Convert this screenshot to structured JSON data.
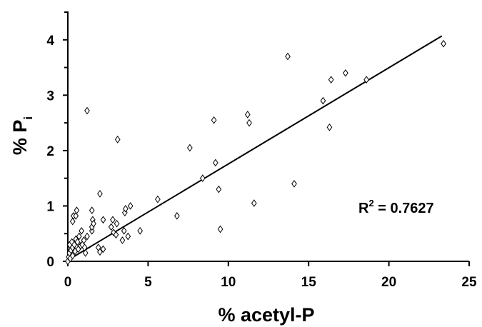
{
  "chart_data": {
    "type": "scatter",
    "title": "",
    "xlabel": "% acetyl-P",
    "ylabel_main": "% P",
    "ylabel_sub": "i",
    "xlim": [
      0,
      25
    ],
    "ylim": [
      0,
      4.5
    ],
    "x_ticks": [
      0,
      5,
      10,
      15,
      20,
      25
    ],
    "y_ticks": [
      0,
      1,
      2,
      3,
      4
    ],
    "y_minor_ticks": [
      0.5,
      1.5,
      2.5,
      3.5,
      4.5
    ],
    "grid": false,
    "legend": "none",
    "marker": "diamond-open",
    "annotation": {
      "prefix": "R",
      "superscript": "2",
      "suffix": " = 0.7627"
    },
    "trendline": {
      "x": [
        0,
        23.3
      ],
      "y": [
        0.02,
        4.07
      ]
    },
    "points": [
      {
        "x": 0.0,
        "y": 0.0
      },
      {
        "x": 0.05,
        "y": 0.08
      },
      {
        "x": 0.1,
        "y": 0.15
      },
      {
        "x": 0.12,
        "y": 0.3
      },
      {
        "x": 0.15,
        "y": 0.05
      },
      {
        "x": 0.2,
        "y": 0.2
      },
      {
        "x": 0.25,
        "y": 0.35
      },
      {
        "x": 0.3,
        "y": 0.1
      },
      {
        "x": 0.3,
        "y": 0.25
      },
      {
        "x": 0.35,
        "y": 0.82
      },
      {
        "x": 0.3,
        "y": 0.72
      },
      {
        "x": 0.5,
        "y": 0.82
      },
      {
        "x": 0.55,
        "y": 0.92
      },
      {
        "x": 0.4,
        "y": 0.3
      },
      {
        "x": 0.45,
        "y": 0.18
      },
      {
        "x": 0.5,
        "y": 0.4
      },
      {
        "x": 0.6,
        "y": 0.35
      },
      {
        "x": 0.65,
        "y": 0.22
      },
      {
        "x": 0.7,
        "y": 0.45
      },
      {
        "x": 0.8,
        "y": 0.28
      },
      {
        "x": 0.85,
        "y": 0.55
      },
      {
        "x": 0.9,
        "y": 0.3
      },
      {
        "x": 1.0,
        "y": 0.38
      },
      {
        "x": 1.05,
        "y": 0.25
      },
      {
        "x": 1.1,
        "y": 0.15
      },
      {
        "x": 1.2,
        "y": 0.45
      },
      {
        "x": 1.2,
        "y": 2.72
      },
      {
        "x": 1.5,
        "y": 0.55
      },
      {
        "x": 1.5,
        "y": 0.62
      },
      {
        "x": 1.55,
        "y": 0.75
      },
      {
        "x": 1.5,
        "y": 0.92
      },
      {
        "x": 1.6,
        "y": 0.68
      },
      {
        "x": 1.9,
        "y": 0.25
      },
      {
        "x": 2.0,
        "y": 0.17
      },
      {
        "x": 2.0,
        "y": 1.22
      },
      {
        "x": 2.2,
        "y": 0.22
      },
      {
        "x": 2.2,
        "y": 0.75
      },
      {
        "x": 2.7,
        "y": 0.62
      },
      {
        "x": 2.8,
        "y": 0.75
      },
      {
        "x": 2.85,
        "y": 0.52
      },
      {
        "x": 3.0,
        "y": 0.48
      },
      {
        "x": 3.05,
        "y": 0.68
      },
      {
        "x": 3.1,
        "y": 2.2
      },
      {
        "x": 3.4,
        "y": 0.38
      },
      {
        "x": 3.5,
        "y": 0.55
      },
      {
        "x": 3.55,
        "y": 0.88
      },
      {
        "x": 3.6,
        "y": 0.95
      },
      {
        "x": 3.75,
        "y": 0.45
      },
      {
        "x": 3.9,
        "y": 1.0
      },
      {
        "x": 4.5,
        "y": 0.55
      },
      {
        "x": 5.6,
        "y": 1.12
      },
      {
        "x": 6.8,
        "y": 0.82
      },
      {
        "x": 7.6,
        "y": 2.05
      },
      {
        "x": 8.4,
        "y": 1.5
      },
      {
        "x": 9.1,
        "y": 2.55
      },
      {
        "x": 9.2,
        "y": 1.78
      },
      {
        "x": 9.4,
        "y": 1.3
      },
      {
        "x": 9.5,
        "y": 0.58
      },
      {
        "x": 11.2,
        "y": 2.65
      },
      {
        "x": 11.3,
        "y": 2.5
      },
      {
        "x": 11.6,
        "y": 1.05
      },
      {
        "x": 13.7,
        "y": 3.7
      },
      {
        "x": 14.1,
        "y": 1.4
      },
      {
        "x": 15.9,
        "y": 2.9
      },
      {
        "x": 16.3,
        "y": 2.42
      },
      {
        "x": 16.4,
        "y": 3.28
      },
      {
        "x": 17.3,
        "y": 3.4
      },
      {
        "x": 18.6,
        "y": 3.28
      },
      {
        "x": 23.4,
        "y": 3.93
      }
    ]
  }
}
